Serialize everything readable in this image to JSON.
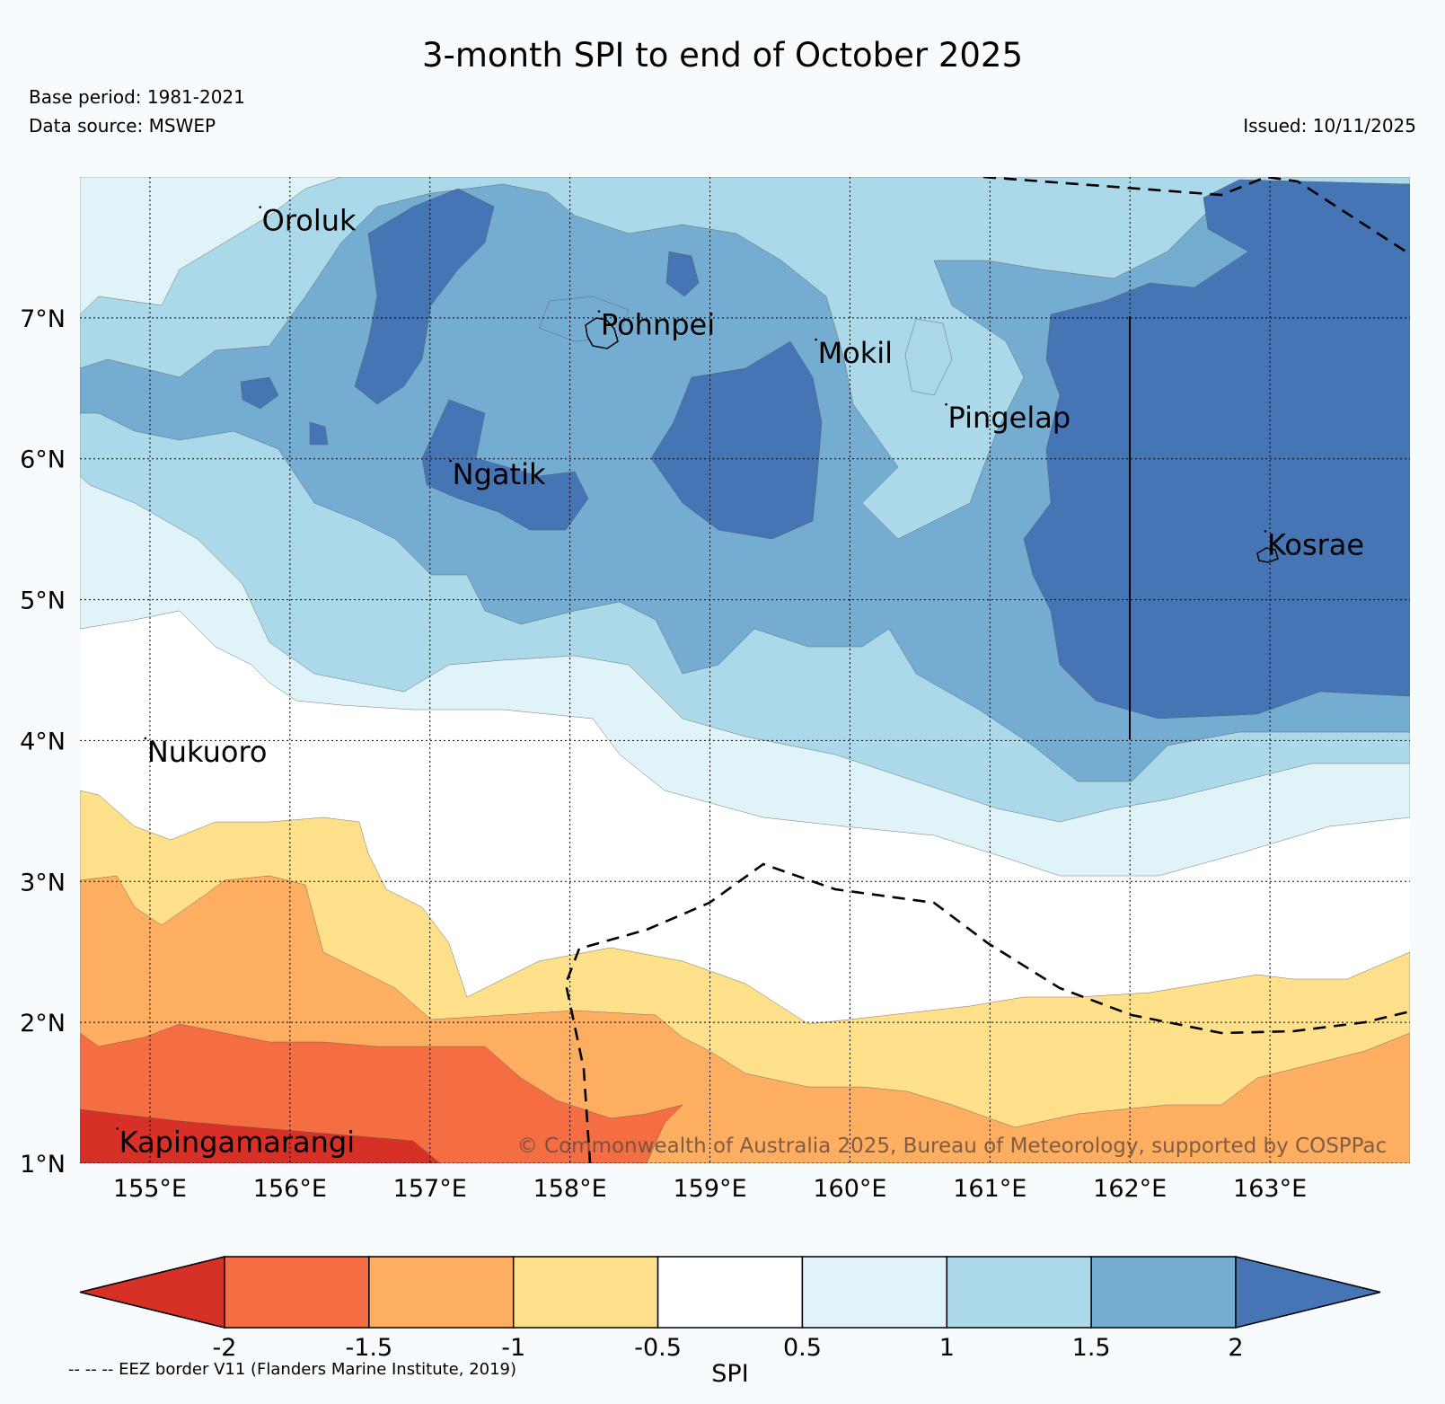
{
  "header": {
    "title": "3-month SPI to end of October 2025",
    "base_period": "Base period: 1981-2021",
    "data_source": "Data source: MSWEP",
    "issued": "Issued: 10/11/2025"
  },
  "map": {
    "lon_range": [
      154.5,
      164.0
    ],
    "lat_range": [
      1.0,
      8.0
    ],
    "lon_ticks": [
      "155°E",
      "156°E",
      "157°E",
      "158°E",
      "159°E",
      "160°E",
      "161°E",
      "162°E",
      "163°E"
    ],
    "lat_ticks": [
      "1°N",
      "2°N",
      "3°N",
      "4°N",
      "5°N",
      "6°N",
      "7°N"
    ],
    "places": [
      {
        "name": "Oroluk",
        "lon": 155.8,
        "lat": 7.62
      },
      {
        "name": "Pohnpei",
        "lon": 158.22,
        "lat": 6.88
      },
      {
        "name": "Mokil",
        "lon": 159.77,
        "lat": 6.68
      },
      {
        "name": "Ngatik",
        "lon": 157.16,
        "lat": 5.82
      },
      {
        "name": "Pingelap",
        "lon": 160.7,
        "lat": 6.22
      },
      {
        "name": "Kosrae",
        "lon": 162.98,
        "lat": 5.32
      },
      {
        "name": "Nukuoro",
        "lon": 154.98,
        "lat": 3.85
      },
      {
        "name": "Kapingamarangi",
        "lon": 154.78,
        "lat": 1.08
      }
    ],
    "copyright": "© Commonwealth of Australia 2025, Bureau of Meteorology, supported by COSPPac"
  },
  "colorbar": {
    "label": "SPI",
    "ticks": [
      "-2",
      "-1.5",
      "-1",
      "-0.5",
      "0.5",
      "1",
      "1.5",
      "2"
    ],
    "colors": [
      "#d73027",
      "#f46d43",
      "#fdae61",
      "#fee08b",
      "#ffffff",
      "#e0f3f8",
      "#abd9e9",
      "#74add1",
      "#4575b4"
    ]
  },
  "legend_note": "-- -- -- EEZ border V11 (Flanders Marine Institute, 2019)"
}
